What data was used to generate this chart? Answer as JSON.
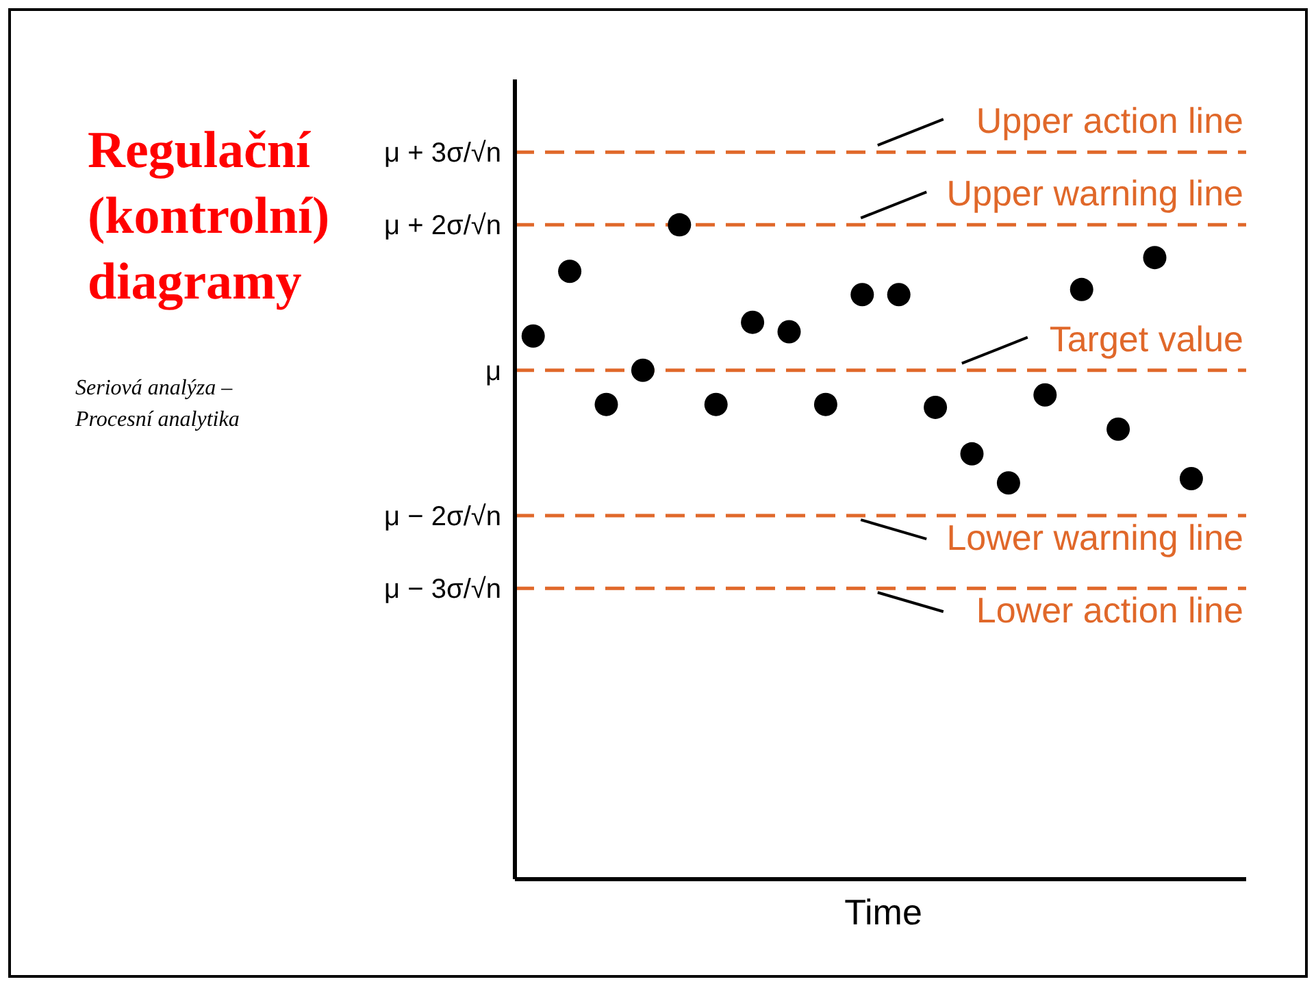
{
  "chart_data": {
    "type": "scatter",
    "title": "Regulační (kontrolní) diagramy",
    "subtitle": "Seriová analýza – Procesní analytika",
    "xlabel": "Time",
    "categories": [
      null,
      null,
      null,
      null,
      null,
      null,
      null,
      null,
      null,
      null,
      null,
      null,
      null,
      null,
      null,
      null,
      null,
      null,
      null,
      null
    ],
    "series": [
      {
        "color": "#000000",
        "values": [
          0.47,
          1.36,
          -0.47,
          0,
          2.0,
          -0.47,
          0.66,
          0.53,
          -0.47,
          1.04,
          1.04,
          -0.51,
          -1.15,
          -1.55,
          -0.34,
          1.11,
          -0.81,
          1.55,
          -1.49,
          null
        ]
      }
    ],
    "marker": "circle",
    "grid": false,
    "ylim": [
      -7,
      4
    ],
    "yticks": [
      {
        "value": 3,
        "label": "μ + 3σ/√n"
      },
      {
        "value": 2,
        "label": "μ + 2σ/√n"
      },
      {
        "value": 0,
        "label": "μ"
      },
      {
        "value": -2,
        "label": "μ − 2σ/√n"
      },
      {
        "value": -3,
        "label": "μ − 3σ/√n"
      }
    ],
    "ref_lines": [
      {
        "axis": "y",
        "value": 3,
        "label": "Upper action line",
        "color": "#e0682a",
        "line_style": "dashed"
      },
      {
        "axis": "y",
        "value": 2,
        "label": "Upper warning line",
        "color": "#e0682a",
        "line_style": "dashed"
      },
      {
        "axis": "y",
        "value": 0,
        "label": "Target value",
        "color": "#e0682a",
        "line_style": "dashed"
      },
      {
        "axis": "y",
        "value": -2,
        "label": "Lower warning line",
        "color": "#e0682a",
        "line_style": "dashed"
      },
      {
        "axis": "y",
        "value": -3,
        "label": "Lower action line",
        "color": "#e0682a",
        "line_style": "dashed"
      }
    ]
  }
}
